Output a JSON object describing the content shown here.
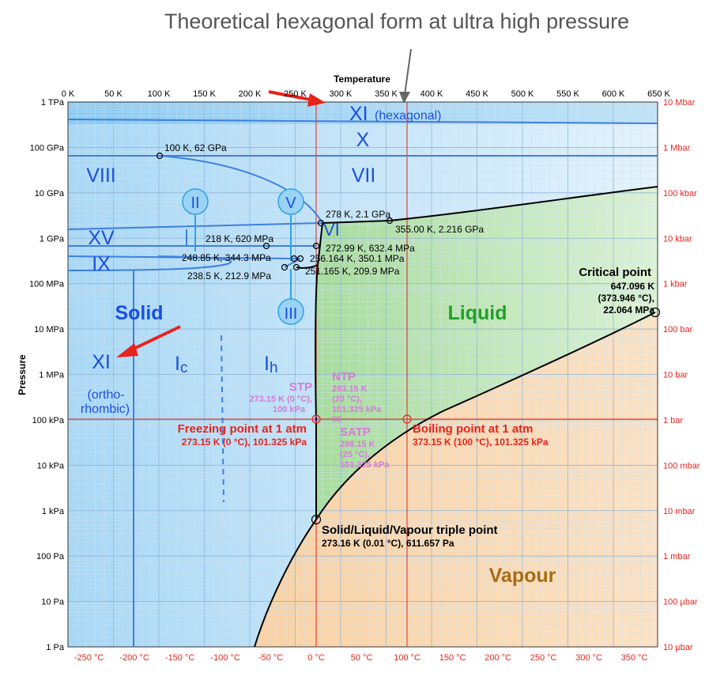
{
  "annotation_top": "Theoretical hexagonal form at ultra high pressure",
  "axis": {
    "x_title": "Temperature",
    "y_title": "Pressure",
    "kelvin_ticks": [
      "0 K",
      "50 K",
      "100 K",
      "150 K",
      "200 K",
      "250 K",
      "300 K",
      "350 K",
      "400 K",
      "450 K",
      "500 K",
      "550 K",
      "600 K",
      "650 K"
    ],
    "celsius_ticks": [
      "-250 °C",
      "-200 °C",
      "-150 °C",
      "-100 °C",
      "-50 °C",
      "0 °C",
      "50 °C",
      "100 °C",
      "150 °C",
      "200 °C",
      "250 °C",
      "300 °C",
      "350 °C"
    ],
    "pa_ticks": [
      "1 TPa",
      "100 GPa",
      "10 GPa",
      "1 GPa",
      "100 MPa",
      "10 MPa",
      "1 MPa",
      "100 kPa",
      "10 kPa",
      "1 kPa",
      "100 Pa",
      "10 Pa",
      "1 Pa"
    ],
    "bar_ticks": [
      "10 Mbar",
      "1 Mbar",
      "100 kbar",
      "10 kbar",
      "1 kbar",
      "100 bar",
      "10 bar",
      "1 bar",
      "100 mbar",
      "10 mbar",
      "1 mbar",
      "100 µbar",
      "10 µbar"
    ]
  },
  "phases": {
    "xi_hex": "XI",
    "xi_hex_sub": "(hexagonal)",
    "x": "X",
    "viii": "VIII",
    "vii": "VII",
    "ii": "II",
    "v": "V",
    "vi": "VI",
    "xv": "XV",
    "ix": "IX",
    "iii": "III",
    "solid": "Solid",
    "liquid": "Liquid",
    "vapour": "Vapour",
    "xi_ortho": "XI",
    "xi_ortho_sub1": "(ortho-",
    "xi_ortho_sub2": "rhombic)",
    "ic_main": "I",
    "ic_sub": "c",
    "ih_main": "I",
    "ih_sub": "h"
  },
  "points": {
    "p100k": "100 K, 62 GPa",
    "p278k": "278 K, 2.1 GPa",
    "p355k": "355.00 K, 2.216 GPa",
    "p218k": "218 K, 620 MPa",
    "p272k": "272.99 K, 632.4 MPa",
    "p248k": "248.85 K, 344.3 MPa",
    "p256k": "256.164 K, 350.1 MPa",
    "p238k": "238.5 K, 212.9 MPa",
    "p251k": "251.165 K, 209.9 MPa",
    "critical_title": "Critical point",
    "critical_1": "647.096 K",
    "critical_2": "(373.946 °C),",
    "critical_3": "22.064 MPa",
    "triple_title": "Solid/Liquid/Vapour triple point",
    "triple_sub": "273.16 K (0.01 °C), 611.657 Pa",
    "freeze_title": "Freezing point at 1 atm",
    "freeze_sub": "273.15 K (0 °C), 101.325 kPa",
    "boil_title": "Boiling point at 1 atm",
    "boil_sub": "373.15 K (100 °C), 101.325 kPa",
    "stp_title": "STP",
    "stp_1": "273.15 K (0 °C),",
    "stp_2": "100 kPa",
    "ntp_title": "NTP",
    "ntp_1": "293.15 K",
    "ntp_2": "(20 °C),",
    "ntp_3": "101.325 kPa",
    "satp_title": "SATP",
    "satp_1": "298.15 K",
    "satp_2": "(25 °C),",
    "satp_3": "101.325 kPa"
  },
  "colors": {
    "solid": "#bfe3f7",
    "liquid": "#c9ecc0",
    "vapour": "#fbd9b0",
    "phase_label": "#1a4fe0",
    "red": "#e8231c",
    "pink": "#d57bd6"
  }
}
